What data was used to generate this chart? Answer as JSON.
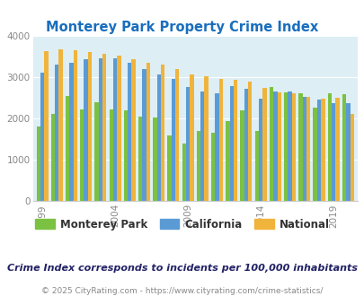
{
  "title": "Monterey Park Property Crime Index",
  "title_color": "#1a6ebd",
  "years": [
    1999,
    2000,
    2001,
    2002,
    2003,
    2004,
    2005,
    2006,
    2007,
    2008,
    2009,
    2010,
    2011,
    2012,
    2013,
    2014,
    2015,
    2016,
    2017,
    2018,
    2019,
    2020
  ],
  "monterey_park": [
    1800,
    2100,
    2550,
    2220,
    2400,
    2220,
    2200,
    2050,
    2020,
    1580,
    1400,
    1700,
    1650,
    1930,
    2200,
    1700,
    2750,
    2620,
    2600,
    2250,
    2600,
    2580
  ],
  "california": [
    3100,
    3300,
    3350,
    3430,
    3450,
    3450,
    3350,
    3180,
    3050,
    2960,
    2750,
    2640,
    2610,
    2780,
    2720,
    2480,
    2640,
    2640,
    2520,
    2450,
    2370,
    2370
  ],
  "national": [
    3620,
    3660,
    3640,
    3600,
    3560,
    3520,
    3420,
    3350,
    3300,
    3200,
    3050,
    3020,
    2960,
    2920,
    2890,
    2740,
    2630,
    2600,
    2530,
    2480,
    2490,
    2100
  ],
  "bar_colors": [
    "#7bc142",
    "#5b9bd5",
    "#f0b43c"
  ],
  "bg_color": "#ddeef5",
  "ylim": [
    0,
    4000
  ],
  "tick_years": [
    1999,
    2004,
    2009,
    2014,
    2019
  ],
  "subtitle": "Crime Index corresponds to incidents per 100,000 inhabitants",
  "footer": "© 2025 CityRating.com - https://www.cityrating.com/crime-statistics/",
  "legend_labels": [
    "Monterey Park",
    "California",
    "National"
  ]
}
